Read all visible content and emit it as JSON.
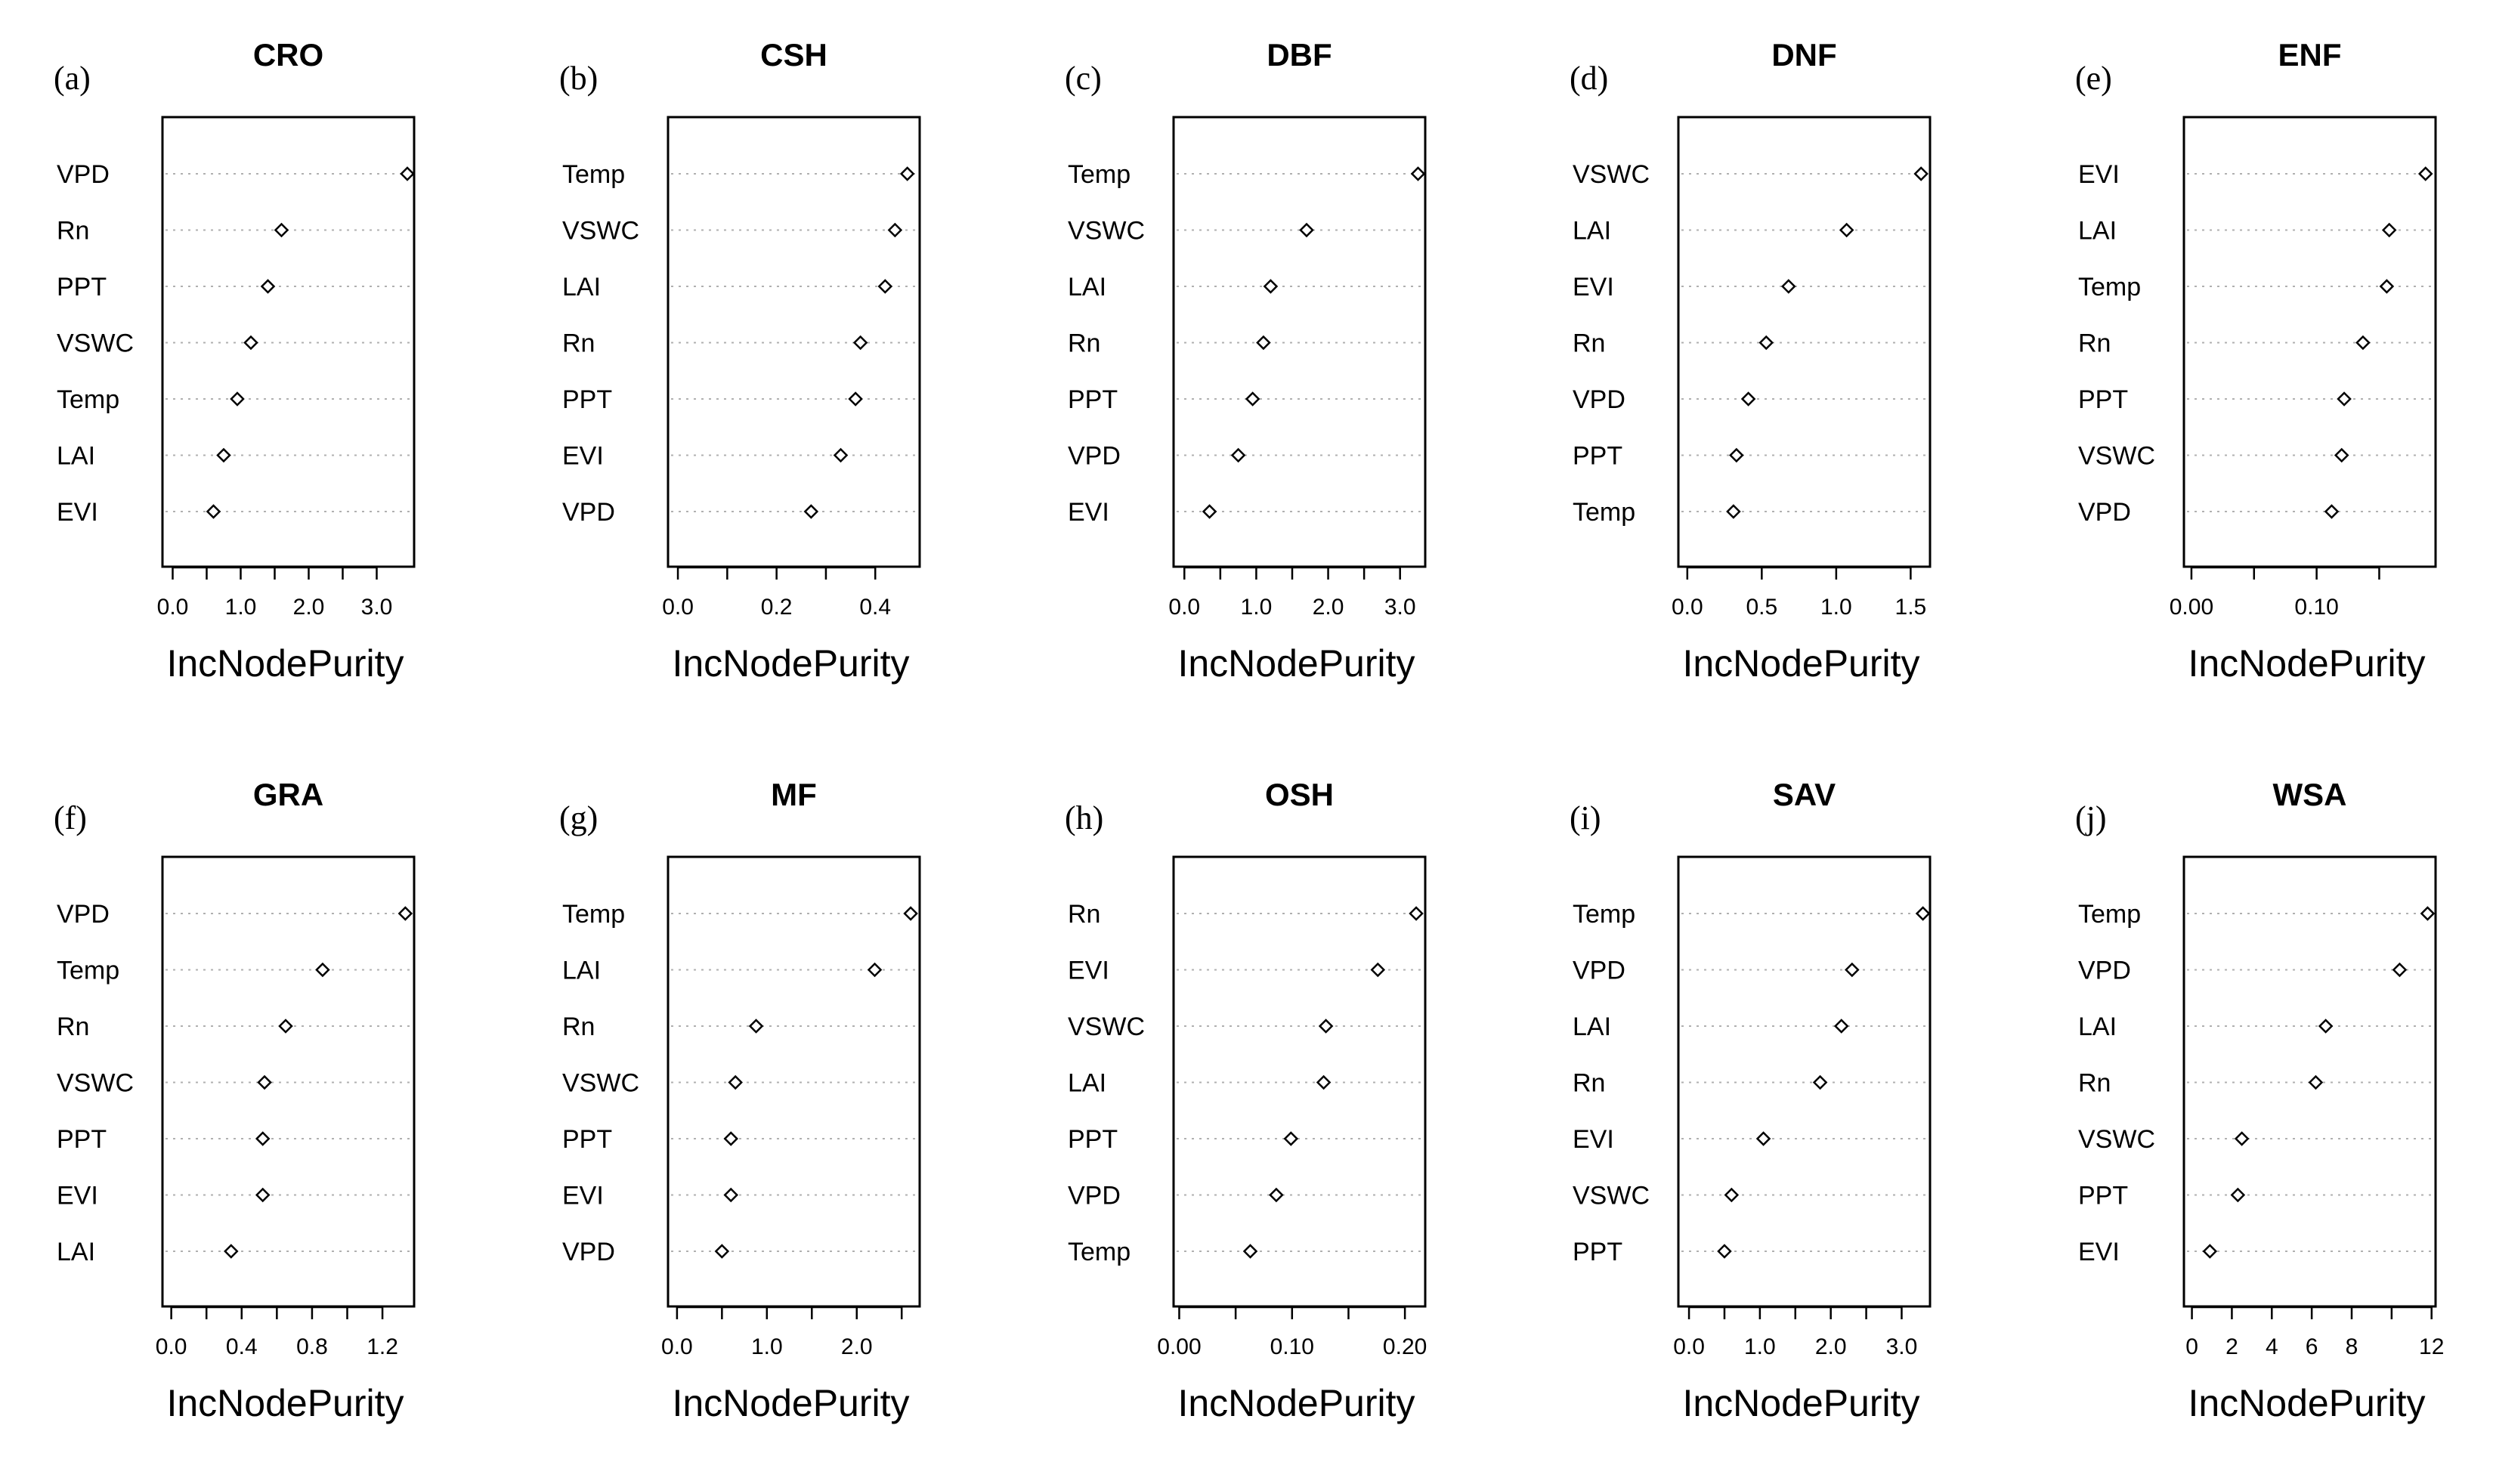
{
  "chart_data": [
    {
      "type": "scatter",
      "panel": "(a)",
      "title": "CRO",
      "xlabel": "IncNodePurity",
      "variables": [
        "VPD",
        "Rn",
        "PPT",
        "VSWC",
        "Temp",
        "LAI",
        "EVI"
      ],
      "values": [
        3.45,
        1.6,
        1.4,
        1.15,
        0.95,
        0.75,
        0.6
      ],
      "xlim": [
        -0.15,
        3.55
      ],
      "ticks": [
        0.0,
        0.5,
        1.0,
        1.5,
        2.0,
        2.5,
        3.0
      ],
      "tick_labels": [
        "0.0",
        "",
        "1.0",
        "",
        "2.0",
        "",
        "3.0"
      ]
    },
    {
      "type": "scatter",
      "panel": "(b)",
      "title": "CSH",
      "xlabel": "IncNodePurity",
      "variables": [
        "Temp",
        "VSWC",
        "LAI",
        "Rn",
        "PPT",
        "EVI",
        "VPD"
      ],
      "values": [
        0.465,
        0.44,
        0.42,
        0.37,
        0.36,
        0.33,
        0.27
      ],
      "xlim": [
        -0.02,
        0.49
      ],
      "ticks": [
        0.0,
        0.1,
        0.2,
        0.3,
        0.4
      ],
      "tick_labels": [
        "0.0",
        "",
        "0.2",
        "",
        "0.4"
      ]
    },
    {
      "type": "scatter",
      "panel": "(c)",
      "title": "DBF",
      "xlabel": "IncNodePurity",
      "variables": [
        "Temp",
        "VSWC",
        "LAI",
        "Rn",
        "PPT",
        "VPD",
        "EVI"
      ],
      "values": [
        3.25,
        1.7,
        1.2,
        1.1,
        0.95,
        0.75,
        0.35
      ],
      "xlim": [
        -0.15,
        3.35
      ],
      "ticks": [
        0.0,
        0.5,
        1.0,
        1.5,
        2.0,
        2.5,
        3.0
      ],
      "tick_labels": [
        "0.0",
        "",
        "1.0",
        "",
        "2.0",
        "",
        "3.0"
      ]
    },
    {
      "type": "scatter",
      "panel": "(d)",
      "title": "DNF",
      "xlabel": "IncNodePurity",
      "variables": [
        "VSWC",
        "LAI",
        "EVI",
        "Rn",
        "VPD",
        "PPT",
        "Temp"
      ],
      "values": [
        1.57,
        1.07,
        0.68,
        0.53,
        0.41,
        0.33,
        0.31
      ],
      "xlim": [
        -0.06,
        1.63
      ],
      "ticks": [
        0.0,
        0.5,
        1.0,
        1.5
      ],
      "tick_labels": [
        "0.0",
        "0.5",
        "1.0",
        "1.5"
      ]
    },
    {
      "type": "scatter",
      "panel": "(e)",
      "title": "ENF",
      "xlabel": "IncNodePurity",
      "variables": [
        "EVI",
        "LAI",
        "Temp",
        "Rn",
        "PPT",
        "VSWC",
        "VPD"
      ],
      "values": [
        0.187,
        0.158,
        0.156,
        0.137,
        0.122,
        0.12,
        0.112
      ],
      "xlim": [
        -0.006,
        0.195
      ],
      "ticks": [
        0.0,
        0.05,
        0.1,
        0.15
      ],
      "tick_labels": [
        "0.00",
        "",
        "0.10",
        ""
      ]
    },
    {
      "type": "scatter",
      "panel": "(f)",
      "title": "GRA",
      "xlabel": "IncNodePurity",
      "variables": [
        "VPD",
        "Temp",
        "Rn",
        "VSWC",
        "PPT",
        "EVI",
        "LAI"
      ],
      "values": [
        1.33,
        0.86,
        0.65,
        0.53,
        0.52,
        0.52,
        0.34
      ],
      "xlim": [
        -0.05,
        1.38
      ],
      "ticks": [
        0.0,
        0.2,
        0.4,
        0.6,
        0.8,
        1.0,
        1.2
      ],
      "tick_labels": [
        "0.0",
        "",
        "0.4",
        "",
        "0.8",
        "",
        "1.2"
      ]
    },
    {
      "type": "scatter",
      "panel": "(g)",
      "title": "MF",
      "xlabel": "IncNodePurity",
      "variables": [
        "Temp",
        "LAI",
        "Rn",
        "VSWC",
        "PPT",
        "EVI",
        "VPD"
      ],
      "values": [
        2.6,
        2.2,
        0.88,
        0.65,
        0.6,
        0.6,
        0.5
      ],
      "xlim": [
        -0.1,
        2.7
      ],
      "ticks": [
        0.0,
        0.5,
        1.0,
        1.5,
        2.0,
        2.5
      ],
      "tick_labels": [
        "0.0",
        "",
        "1.0",
        "",
        "2.0",
        ""
      ]
    },
    {
      "type": "scatter",
      "panel": "(h)",
      "title": "OSH",
      "xlabel": "IncNodePurity",
      "variables": [
        "Rn",
        "EVI",
        "VSWC",
        "LAI",
        "PPT",
        "VPD",
        "Temp"
      ],
      "values": [
        0.21,
        0.176,
        0.13,
        0.128,
        0.099,
        0.086,
        0.063
      ],
      "xlim": [
        -0.005,
        0.218
      ],
      "ticks": [
        0.0,
        0.05,
        0.1,
        0.15,
        0.2
      ],
      "tick_labels": [
        "0.00",
        "",
        "0.10",
        "",
        "0.20"
      ]
    },
    {
      "type": "scatter",
      "panel": "(i)",
      "title": "SAV",
      "xlabel": "IncNodePurity",
      "variables": [
        "Temp",
        "VPD",
        "LAI",
        "Rn",
        "EVI",
        "VSWC",
        "PPT"
      ],
      "values": [
        3.3,
        2.3,
        2.15,
        1.85,
        1.05,
        0.6,
        0.5
      ],
      "xlim": [
        -0.15,
        3.4
      ],
      "ticks": [
        0.0,
        0.5,
        1.0,
        1.5,
        2.0,
        2.5,
        3.0
      ],
      "tick_labels": [
        "0.0",
        "",
        "1.0",
        "",
        "2.0",
        "",
        "3.0"
      ]
    },
    {
      "type": "scatter",
      "panel": "(j)",
      "title": "WSA",
      "xlabel": "IncNodePurity",
      "variables": [
        "Temp",
        "VPD",
        "LAI",
        "Rn",
        "VSWC",
        "PPT",
        "EVI"
      ],
      "values": [
        11.8,
        10.4,
        6.7,
        6.2,
        2.5,
        2.3,
        0.9
      ],
      "xlim": [
        -0.4,
        12.2
      ],
      "ticks": [
        0,
        2,
        4,
        6,
        8,
        10,
        12
      ],
      "tick_labels": [
        "0",
        "2",
        "4",
        "6",
        "8",
        "",
        "12"
      ]
    }
  ]
}
